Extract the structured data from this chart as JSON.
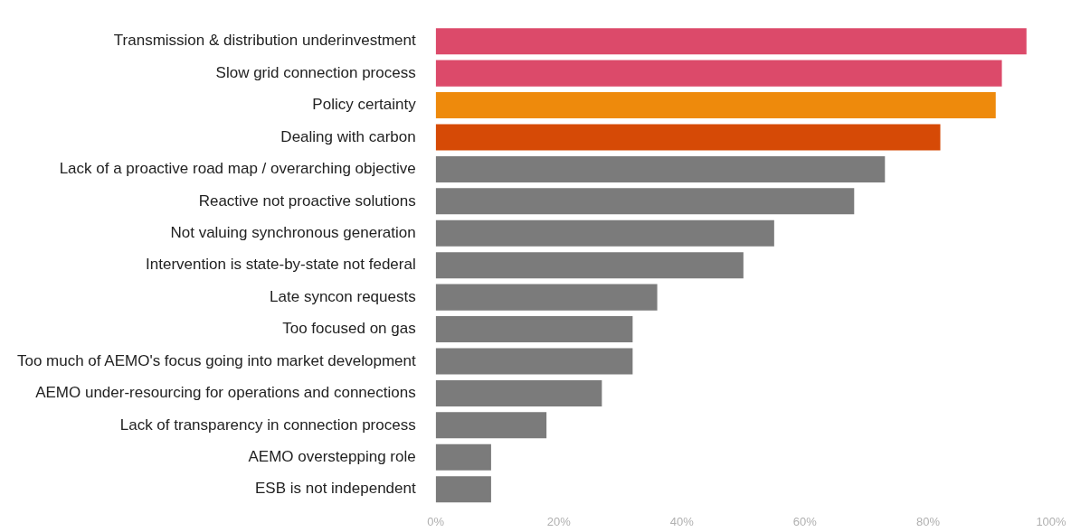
{
  "chart_data": {
    "type": "bar",
    "orientation": "horizontal",
    "categories": [
      "Transmission & distribution underinvestment",
      "Slow grid connection process",
      "Policy certainty",
      "Dealing with carbon",
      "Lack of a proactive road map / overarching objective",
      "Reactive not proactive solutions",
      "Not valuing synchronous generation",
      "Intervention is state-by-state not federal",
      "Late syncon requests",
      "Too focused on gas",
      "Too much of AEMO's focus going into market development",
      "AEMO under-resourcing for operations and connections",
      "Lack of transparency in connection process",
      "AEMO overstepping role",
      "ESB is not independent"
    ],
    "values": [
      96,
      92,
      91,
      82,
      73,
      68,
      55,
      50,
      36,
      32,
      32,
      27,
      18,
      9,
      9
    ],
    "colors": [
      "#dc4a6a",
      "#dc4a6a",
      "#ee8a0c",
      "#d64a06",
      "#7b7b7b",
      "#7b7b7b",
      "#7b7b7b",
      "#7b7b7b",
      "#7b7b7b",
      "#7b7b7b",
      "#7b7b7b",
      "#7b7b7b",
      "#7b7b7b",
      "#7b7b7b",
      "#7b7b7b"
    ],
    "xlim": [
      0,
      100
    ],
    "xticks": [
      {
        "value": 0,
        "label": "0%"
      },
      {
        "value": 20,
        "label": "20%"
      },
      {
        "value": 40,
        "label": "40%"
      },
      {
        "value": 60,
        "label": "60%"
      },
      {
        "value": 80,
        "label": "80%"
      },
      {
        "value": 100,
        "label": "100%"
      }
    ],
    "grid": false,
    "legend": false
  }
}
